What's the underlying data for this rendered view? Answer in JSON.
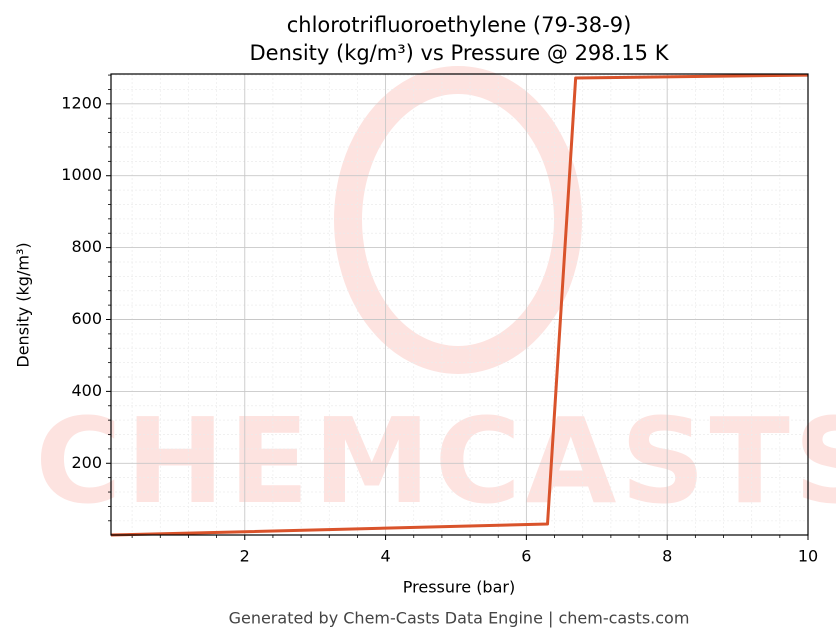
{
  "chart_data": {
    "type": "line",
    "title": "chlorotrifluoroethylene (79-38-9)",
    "subtitle": "Density (kg/m³) vs Pressure @ 298.15 K",
    "x_label": "Pressure (bar)",
    "y_label": "Density (kg/m³)",
    "footer": "Generated by Chem-Casts Data Engine | chem-casts.com",
    "watermark": "CHEMCASTS",
    "x": [
      0.1,
      2,
      4,
      6.3,
      6.7,
      10
    ],
    "series": [
      {
        "name": "Density",
        "color": "#d9532b",
        "values": [
          0.47,
          9.5,
          19.5,
          31,
          1272,
          1280
        ]
      }
    ],
    "xlim": [
      0.1,
      10
    ],
    "ylim": [
      0.47,
      1283
    ],
    "xticks": [
      2,
      4,
      6,
      8,
      10
    ],
    "yticks": [
      200,
      400,
      600,
      800,
      1000,
      1200
    ],
    "minor_xticks": [
      0.4,
      0.8,
      1.2,
      1.6,
      2.4,
      2.8,
      3.2,
      3.6,
      4.4,
      4.8,
      5.2,
      5.6,
      6.4,
      6.8,
      7.2,
      7.6,
      8.4,
      8.8,
      9.2,
      9.6
    ],
    "minor_yticks": [
      40,
      80,
      120,
      160,
      240,
      280,
      320,
      360,
      440,
      480,
      520,
      560,
      640,
      680,
      720,
      760,
      840,
      880,
      920,
      960,
      1040,
      1080,
      1120,
      1160,
      1240,
      1280
    ],
    "grid": true
  }
}
